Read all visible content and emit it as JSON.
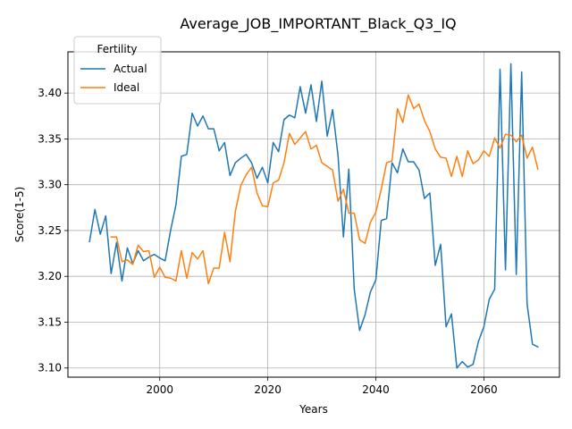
{
  "chart_data": {
    "type": "line",
    "title": "Average_JOB_IMPORTANT_Black_Q3_IQ",
    "xlabel": "Years",
    "ylabel": "Score(1-5)",
    "xlim": [
      1983,
      2074
    ],
    "ylim": [
      3.09,
      3.445
    ],
    "xticks": [
      2000,
      2020,
      2040,
      2060
    ],
    "yticks": [
      3.1,
      3.15,
      3.2,
      3.25,
      3.3,
      3.35,
      3.4
    ],
    "ytick_labels": [
      "3.10",
      "3.15",
      "3.20",
      "3.25",
      "3.30",
      "3.35",
      "3.40"
    ],
    "grid": true,
    "legend": {
      "title": "Fertility",
      "placement": "top-left"
    },
    "series": [
      {
        "name": "Actual",
        "color": "#1f77b4",
        "x": [
          1987,
          1988,
          1989,
          1990,
          1991,
          1992,
          1993,
          1994,
          1995,
          1996,
          1997,
          1998,
          1999,
          2000,
          2001,
          2002,
          2003,
          2004,
          2005,
          2006,
          2007,
          2008,
          2009,
          2010,
          2011,
          2012,
          2013,
          2014,
          2015,
          2016,
          2017,
          2018,
          2019,
          2020,
          2021,
          2022,
          2023,
          2024,
          2025,
          2026,
          2027,
          2028,
          2029,
          2030,
          2031,
          2032,
          2033,
          2034,
          2035,
          2036,
          2037,
          2038,
          2039,
          2040,
          2041,
          2042,
          2043,
          2044,
          2045,
          2046,
          2047,
          2048,
          2049,
          2050,
          2051,
          2052,
          2053,
          2054,
          2055,
          2056,
          2057,
          2058,
          2059,
          2060,
          2061,
          2062,
          2063,
          2064,
          2065,
          2066,
          2067,
          2068,
          2069,
          2070
        ],
        "values": [
          3.238,
          3.273,
          3.246,
          3.266,
          3.203,
          3.237,
          3.195,
          3.231,
          3.214,
          3.228,
          3.217,
          3.221,
          3.224,
          3.22,
          3.217,
          3.25,
          3.278,
          3.331,
          3.333,
          3.378,
          3.364,
          3.375,
          3.361,
          3.361,
          3.337,
          3.346,
          3.31,
          3.324,
          3.329,
          3.333,
          3.324,
          3.307,
          3.319,
          3.302,
          3.346,
          3.336,
          3.371,
          3.376,
          3.373,
          3.407,
          3.378,
          3.409,
          3.369,
          3.413,
          3.353,
          3.382,
          3.332,
          3.243,
          3.317,
          3.186,
          3.141,
          3.158,
          3.183,
          3.196,
          3.261,
          3.263,
          3.324,
          3.313,
          3.339,
          3.325,
          3.325,
          3.316,
          3.285,
          3.291,
          3.212,
          3.235,
          3.145,
          3.159,
          3.1,
          3.107,
          3.101,
          3.104,
          3.129,
          3.145,
          3.175,
          3.186,
          3.426,
          3.207,
          3.432,
          3.202,
          3.423,
          3.17,
          3.126,
          3.123
        ]
      },
      {
        "name": "Ideal",
        "color": "#ff7f0e",
        "x": [
          1991,
          1992,
          1993,
          1994,
          1995,
          1996,
          1997,
          1998,
          1999,
          2000,
          2001,
          2002,
          2003,
          2004,
          2005,
          2006,
          2007,
          2008,
          2009,
          2010,
          2011,
          2012,
          2013,
          2014,
          2015,
          2016,
          2017,
          2018,
          2019,
          2020,
          2021,
          2022,
          2023,
          2024,
          2025,
          2026,
          2027,
          2028,
          2029,
          2030,
          2031,
          2032,
          2033,
          2034,
          2035,
          2036,
          2037,
          2038,
          2039,
          2040,
          2041,
          2042,
          2043,
          2044,
          2045,
          2046,
          2047,
          2048,
          2049,
          2050,
          2051,
          2052,
          2053,
          2054,
          2055,
          2056,
          2057,
          2058,
          2059,
          2060,
          2061,
          2062,
          2063,
          2064,
          2065,
          2066,
          2067,
          2068,
          2069,
          2070
        ],
        "values": [
          3.243,
          3.243,
          3.216,
          3.218,
          3.213,
          3.234,
          3.227,
          3.228,
          3.199,
          3.21,
          3.199,
          3.198,
          3.195,
          3.228,
          3.198,
          3.226,
          3.219,
          3.228,
          3.192,
          3.209,
          3.209,
          3.248,
          3.216,
          3.271,
          3.299,
          3.311,
          3.319,
          3.291,
          3.277,
          3.276,
          3.302,
          3.305,
          3.324,
          3.356,
          3.344,
          3.351,
          3.358,
          3.339,
          3.343,
          3.324,
          3.32,
          3.316,
          3.282,
          3.295,
          3.269,
          3.269,
          3.24,
          3.236,
          3.259,
          3.27,
          3.295,
          3.324,
          3.326,
          3.383,
          3.368,
          3.398,
          3.383,
          3.388,
          3.37,
          3.358,
          3.339,
          3.33,
          3.329,
          3.309,
          3.331,
          3.309,
          3.337,
          3.323,
          3.327,
          3.337,
          3.331,
          3.351,
          3.34,
          3.355,
          3.354,
          3.347,
          3.354,
          3.329,
          3.341,
          3.317
        ]
      }
    ]
  }
}
